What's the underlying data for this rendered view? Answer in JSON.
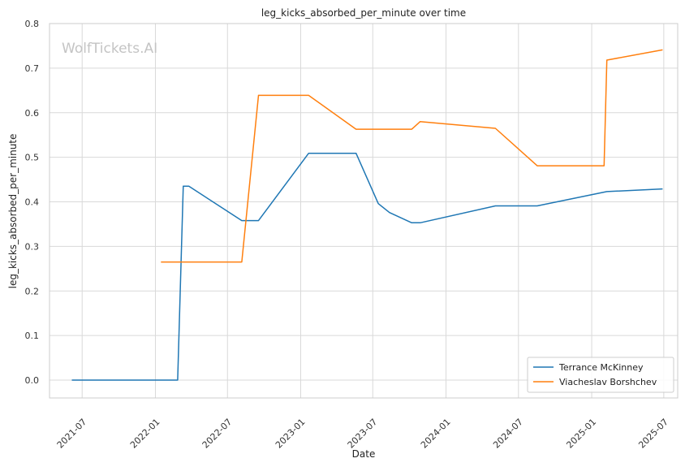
{
  "chart_data": {
    "type": "line",
    "title": "leg_kicks_absorbed_per_minute over time",
    "xlabel": "Date",
    "ylabel": "leg_kicks_absorbed_per_minute",
    "watermark": "WolfTickets.AI",
    "ylim": [
      -0.04,
      0.8
    ],
    "xlim": [
      "2021-04-10",
      "2025-08-05"
    ],
    "yticks": [
      0.0,
      0.1,
      0.2,
      0.3,
      0.4,
      0.5,
      0.6,
      0.7,
      0.8
    ],
    "ytick_labels": [
      "0.0",
      "0.1",
      "0.2",
      "0.3",
      "0.4",
      "0.5",
      "0.6",
      "0.7",
      "0.8"
    ],
    "xticks": [
      "2021-07-01",
      "2022-01-01",
      "2022-07-01",
      "2023-01-01",
      "2023-07-01",
      "2024-01-01",
      "2024-07-01",
      "2025-01-01",
      "2025-07-01"
    ],
    "xtick_labels": [
      "2021-07",
      "2022-01",
      "2022-07",
      "2023-01",
      "2023-07",
      "2024-01",
      "2024-07",
      "2025-01",
      "2025-07"
    ],
    "grid": true,
    "legend_position": "bottom-right",
    "series": [
      {
        "name": "Terrance McKinney",
        "color": "#1f77b4",
        "x": [
          "2021-06-05",
          "2022-02-26",
          "2022-03-12",
          "2022-03-26",
          "2022-08-06",
          "2022-09-17",
          "2023-01-21",
          "2023-05-20",
          "2023-07-15",
          "2023-08-12",
          "2023-10-07",
          "2023-10-28",
          "2024-05-04",
          "2024-08-17",
          "2025-02-08",
          "2025-06-28"
        ],
        "values": [
          0.0,
          0.0,
          0.435,
          0.435,
          0.358,
          0.358,
          0.509,
          0.509,
          0.396,
          0.376,
          0.353,
          0.353,
          0.391,
          0.391,
          0.423,
          0.429
        ]
      },
      {
        "name": "Viacheslav Borshchev",
        "color": "#ff7f0e",
        "x": [
          "2022-01-15",
          "2022-08-06",
          "2022-09-17",
          "2023-01-21",
          "2023-05-20",
          "2023-10-07",
          "2023-10-28",
          "2024-05-04",
          "2024-08-17",
          "2025-02-01",
          "2025-02-08",
          "2025-06-28"
        ],
        "values": [
          0.265,
          0.265,
          0.639,
          0.639,
          0.563,
          0.563,
          0.58,
          0.565,
          0.481,
          0.481,
          0.718,
          0.741
        ]
      }
    ]
  }
}
